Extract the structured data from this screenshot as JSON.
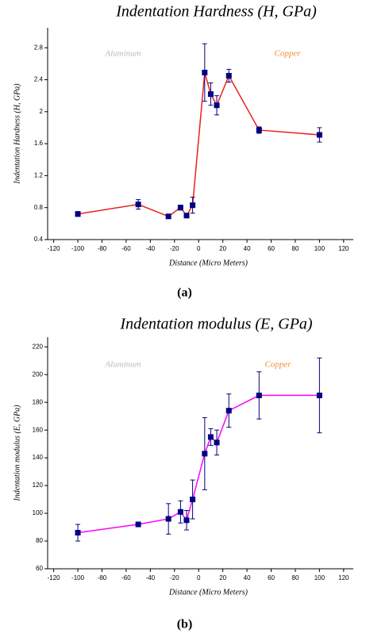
{
  "chart_data": [
    {
      "type": "line",
      "title": "Indentation Hardness (H, GPa)",
      "x_label": "Distance (Micro Meters)",
      "y_label": "Indentation Hardness (H, GPa)",
      "x": [
        -100,
        -50,
        -25,
        -15,
        -10,
        -5,
        5,
        10,
        15,
        25,
        50,
        100
      ],
      "values": [
        0.72,
        0.84,
        0.69,
        0.8,
        0.7,
        0.83,
        2.49,
        2.22,
        2.08,
        2.45,
        1.77,
        1.71
      ],
      "errors": [
        0.03,
        0.06,
        0.01,
        0.03,
        0.02,
        0.1,
        0.36,
        0.14,
        0.12,
        0.08,
        0.04,
        0.09
      ],
      "color": "#e8211f",
      "marker_color": "#000080",
      "xlim": [
        -125,
        128
      ],
      "xticks": [
        -120,
        -100,
        -80,
        -60,
        -40,
        -20,
        0,
        20,
        40,
        60,
        80,
        100,
        120
      ],
      "ylim": [
        0.4,
        3.05
      ],
      "yticks": [
        0.4,
        0.8,
        1.2,
        1.6,
        2.0,
        2.4,
        2.8
      ],
      "annotations": [
        {
          "text": "Aluminum",
          "color": "#bbbbbb"
        },
        {
          "text": "Copper",
          "color": "#f08a30"
        }
      ],
      "caption": "(a)"
    },
    {
      "type": "line",
      "title": "Indentation modulus (E, GPa)",
      "x_label": "Distance (Micro Meters)",
      "y_label": "Indentation modulus (E, GPa)",
      "x": [
        -100,
        -50,
        -25,
        -15,
        -10,
        -5,
        5,
        10,
        15,
        25,
        50,
        100
      ],
      "values": [
        86,
        92,
        96,
        101,
        95,
        110,
        143,
        155,
        151,
        174,
        185,
        185
      ],
      "errors": [
        6,
        1,
        11,
        8,
        7,
        14,
        26,
        6,
        9,
        12,
        17,
        27
      ],
      "color": "#ff00ff",
      "marker_color": "#000080",
      "xlim": [
        -125,
        128
      ],
      "xticks": [
        -120,
        -100,
        -80,
        -60,
        -40,
        -20,
        0,
        20,
        40,
        60,
        80,
        100,
        120
      ],
      "ylim": [
        60,
        227
      ],
      "yticks": [
        60,
        80,
        100,
        120,
        140,
        160,
        180,
        200,
        220
      ],
      "annotations": [
        {
          "text": "Aluminum",
          "color": "#bbbbbb"
        },
        {
          "text": "Copper",
          "color": "#f08a30"
        }
      ],
      "caption": "(b)"
    }
  ]
}
